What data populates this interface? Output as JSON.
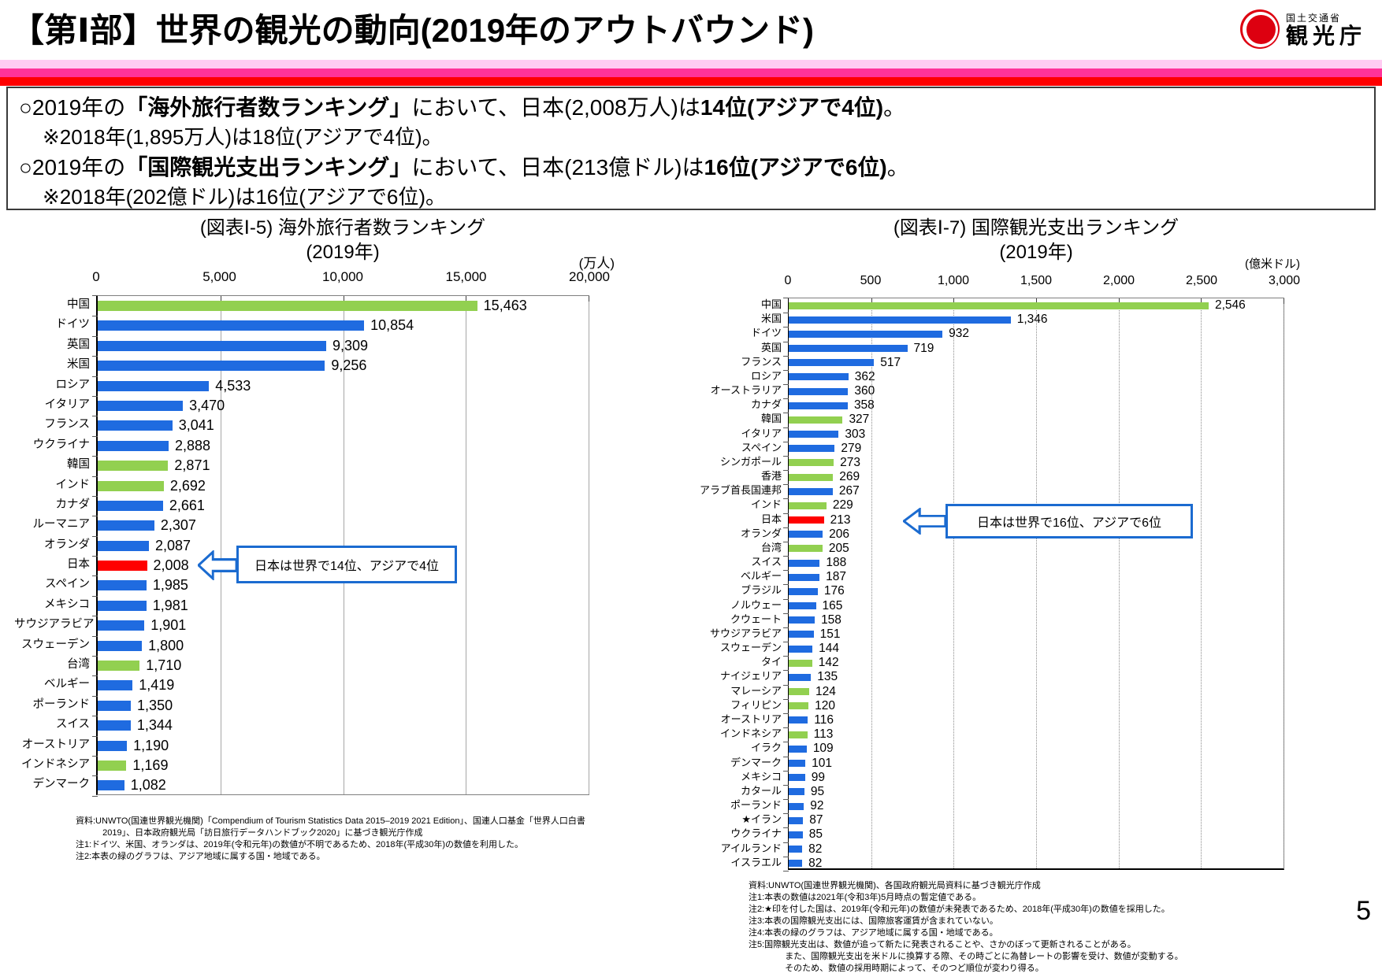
{
  "header": {
    "title": "【第Ⅰ部】世界の観光の動向(2019年のアウトバウンド)",
    "logo_ministry": "国土交通省",
    "logo_agency": "観光庁"
  },
  "page_number": "5",
  "colors": {
    "blue": "#1f6be0",
    "green": "#92d050",
    "red": "#ff0000",
    "stripe_pink": "#ffccf2",
    "stripe_magenta": "#ff3399",
    "stripe_red": "#ff0000",
    "callout_blue": "#1b6bd0",
    "logo_red": "#dd0010"
  },
  "summary": {
    "lines": [
      {
        "indent": false,
        "small": false,
        "segments": [
          {
            "t": "○2019年の",
            "b": false
          },
          {
            "t": "「海外旅行者数ランキング」",
            "b": true
          },
          {
            "t": "において、日本(2,008万人)は",
            "b": false
          },
          {
            "t": "14位(アジアで4位)",
            "b": true
          },
          {
            "t": "。",
            "b": false
          }
        ]
      },
      {
        "indent": true,
        "small": true,
        "segments": [
          {
            "t": "※2018年(1,895万人)は18位(アジアで4位)。",
            "b": false
          }
        ]
      },
      {
        "indent": false,
        "small": false,
        "segments": [
          {
            "t": "○2019年の",
            "b": false
          },
          {
            "t": "「国際観光支出ランキング」",
            "b": true
          },
          {
            "t": "において、日本(213億ドル)は",
            "b": false
          },
          {
            "t": "16位(アジアで6位)",
            "b": true
          },
          {
            "t": "。",
            "b": false
          }
        ]
      },
      {
        "indent": true,
        "small": true,
        "segments": [
          {
            "t": "※2018年(202億ドル)は16位(アジアで6位)。",
            "b": false
          }
        ]
      }
    ]
  },
  "chart_data": [
    {
      "type": "bar",
      "orientation": "horizontal",
      "title_line1": "(図表Ⅰ-5) 海外旅行者数ランキング",
      "title_line2": "(2019年)",
      "unit": "(万人)",
      "legend_note": "緑=アジア地域、赤=日本",
      "axis": {
        "min": 0,
        "max": 20000,
        "ticks": [
          "0",
          "5,000",
          "10,000",
          "15,000",
          "20,000"
        ],
        "gridline_style": "solid"
      },
      "bars": [
        {
          "label": "中国",
          "value": 15463,
          "display": "15,463",
          "color": "green"
        },
        {
          "label": "ドイツ",
          "value": 10854,
          "display": "10,854",
          "color": "blue"
        },
        {
          "label": "英国",
          "value": 9309,
          "display": "9,309",
          "color": "blue"
        },
        {
          "label": "米国",
          "value": 9256,
          "display": "9,256",
          "color": "blue"
        },
        {
          "label": "ロシア",
          "value": 4533,
          "display": "4,533",
          "color": "blue"
        },
        {
          "label": "イタリア",
          "value": 3470,
          "display": "3,470",
          "color": "blue"
        },
        {
          "label": "フランス",
          "value": 3041,
          "display": "3,041",
          "color": "blue"
        },
        {
          "label": "ウクライナ",
          "value": 2888,
          "display": "2,888",
          "color": "blue"
        },
        {
          "label": "韓国",
          "value": 2871,
          "display": "2,871",
          "color": "green"
        },
        {
          "label": "インド",
          "value": 2692,
          "display": "2,692",
          "color": "green"
        },
        {
          "label": "カナダ",
          "value": 2661,
          "display": "2,661",
          "color": "blue"
        },
        {
          "label": "ルーマニア",
          "value": 2307,
          "display": "2,307",
          "color": "blue"
        },
        {
          "label": "オランダ",
          "value": 2087,
          "display": "2,087",
          "color": "blue"
        },
        {
          "label": "日本",
          "value": 2008,
          "display": "2,008",
          "color": "red"
        },
        {
          "label": "スペイン",
          "value": 1985,
          "display": "1,985",
          "color": "blue"
        },
        {
          "label": "メキシコ",
          "value": 1981,
          "display": "1,981",
          "color": "blue"
        },
        {
          "label": "サウジアラビア",
          "value": 1901,
          "display": "1,901",
          "color": "blue"
        },
        {
          "label": "スウェーデン",
          "value": 1800,
          "display": "1,800",
          "color": "blue"
        },
        {
          "label": "台湾",
          "value": 1710,
          "display": "1,710",
          "color": "green"
        },
        {
          "label": "ベルギー",
          "value": 1419,
          "display": "1,419",
          "color": "blue"
        },
        {
          "label": "ポーランド",
          "value": 1350,
          "display": "1,350",
          "color": "blue"
        },
        {
          "label": "スイス",
          "value": 1344,
          "display": "1,344",
          "color": "blue"
        },
        {
          "label": "オーストリア",
          "value": 1190,
          "display": "1,190",
          "color": "blue"
        },
        {
          "label": "インドネシア",
          "value": 1169,
          "display": "1,169",
          "color": "green"
        },
        {
          "label": "デンマーク",
          "value": 1082,
          "display": "1,082",
          "color": "blue"
        }
      ],
      "callout": {
        "text": "日本は世界で14位、アジアで4位",
        "target": "日本"
      },
      "notes": [
        {
          "text": "資料:UNWTO(国連世界観光機関)「Compendium of Tourism Statistics Data 2015–2019 2021 Edition」、国連人口基金「世界人口白書2019」、日本政府観光局「訪日旅行データハンドブック2020」に基づき観光庁作成",
          "indent": false
        },
        {
          "text": "注1:ドイツ、米国、オランダは、2019年(令和元年)の数値が不明であるため、2018年(平成30年)の数値を利用した。",
          "indent": false
        },
        {
          "text": "注2:本表の緑のグラフは、アジア地域に属する国・地域である。",
          "indent": false
        }
      ]
    },
    {
      "type": "bar",
      "orientation": "horizontal",
      "title_line1": "(図表Ⅰ-7) 国際観光支出ランキング",
      "title_line2": "(2019年)",
      "unit": "(億米ドル)",
      "legend_note": "緑=アジア地域、赤=日本",
      "axis": {
        "min": 0,
        "max": 3000,
        "ticks": [
          "0",
          "500",
          "1,000",
          "1,500",
          "2,000",
          "2,500",
          "3,000"
        ],
        "gridline_style": "dotted"
      },
      "bars": [
        {
          "label": "中国",
          "value": 2546,
          "display": "2,546",
          "color": "green"
        },
        {
          "label": "米国",
          "value": 1346,
          "display": "1,346",
          "color": "blue"
        },
        {
          "label": "ドイツ",
          "value": 932,
          "display": "932",
          "color": "blue"
        },
        {
          "label": "英国",
          "value": 719,
          "display": "719",
          "color": "blue"
        },
        {
          "label": "フランス",
          "value": 517,
          "display": "517",
          "color": "blue"
        },
        {
          "label": "ロシア",
          "value": 362,
          "display": "362",
          "color": "blue"
        },
        {
          "label": "オーストラリア",
          "value": 360,
          "display": "360",
          "color": "blue"
        },
        {
          "label": "カナダ",
          "value": 358,
          "display": "358",
          "color": "blue"
        },
        {
          "label": "韓国",
          "value": 327,
          "display": "327",
          "color": "green"
        },
        {
          "label": "イタリア",
          "value": 303,
          "display": "303",
          "color": "blue"
        },
        {
          "label": "スペイン",
          "value": 279,
          "display": "279",
          "color": "blue"
        },
        {
          "label": "シンガポール",
          "value": 273,
          "display": "273",
          "color": "green"
        },
        {
          "label": "香港",
          "value": 269,
          "display": "269",
          "color": "green"
        },
        {
          "label": "アラブ首長国連邦",
          "value": 267,
          "display": "267",
          "color": "blue"
        },
        {
          "label": "インド",
          "value": 229,
          "display": "229",
          "color": "green"
        },
        {
          "label": "日本",
          "value": 213,
          "display": "213",
          "color": "red"
        },
        {
          "label": "オランダ",
          "value": 206,
          "display": "206",
          "color": "blue"
        },
        {
          "label": "台湾",
          "value": 205,
          "display": "205",
          "color": "green"
        },
        {
          "label": "スイス",
          "value": 188,
          "display": "188",
          "color": "blue"
        },
        {
          "label": "ベルギー",
          "value": 187,
          "display": "187",
          "color": "blue"
        },
        {
          "label": "ブラジル",
          "value": 176,
          "display": "176",
          "color": "blue"
        },
        {
          "label": "ノルウェー",
          "value": 165,
          "display": "165",
          "color": "blue"
        },
        {
          "label": "クウェート",
          "value": 158,
          "display": "158",
          "color": "blue"
        },
        {
          "label": "サウジアラビア",
          "value": 151,
          "display": "151",
          "color": "blue"
        },
        {
          "label": "スウェーデン",
          "value": 144,
          "display": "144",
          "color": "blue"
        },
        {
          "label": "タイ",
          "value": 142,
          "display": "142",
          "color": "green"
        },
        {
          "label": "ナイジェリア",
          "value": 135,
          "display": "135",
          "color": "blue"
        },
        {
          "label": "マレーシア",
          "value": 124,
          "display": "124",
          "color": "green"
        },
        {
          "label": "フィリピン",
          "value": 120,
          "display": "120",
          "color": "green"
        },
        {
          "label": "オーストリア",
          "value": 116,
          "display": "116",
          "color": "blue"
        },
        {
          "label": "インドネシア",
          "value": 113,
          "display": "113",
          "color": "green"
        },
        {
          "label": "イラク",
          "value": 109,
          "display": "109",
          "color": "blue"
        },
        {
          "label": "デンマーク",
          "value": 101,
          "display": "101",
          "color": "blue"
        },
        {
          "label": "メキシコ",
          "value": 99,
          "display": "99",
          "color": "blue"
        },
        {
          "label": "カタール",
          "value": 95,
          "display": "95",
          "color": "blue"
        },
        {
          "label": "ポーランド",
          "value": 92,
          "display": "92",
          "color": "blue"
        },
        {
          "label": "★イラン",
          "value": 87,
          "display": "87",
          "color": "blue"
        },
        {
          "label": "ウクライナ",
          "value": 85,
          "display": "85",
          "color": "blue"
        },
        {
          "label": "アイルランド",
          "value": 82,
          "display": "82",
          "color": "blue"
        },
        {
          "label": "イスラエル",
          "value": 82,
          "display": "82",
          "color": "blue"
        }
      ],
      "callout": {
        "text": "日本は世界で16位、アジアで6位",
        "target": "日本"
      },
      "notes": [
        {
          "text": "資料:UNWTO(国連世界観光機関)、各国政府観光局資料に基づき観光庁作成",
          "indent": false
        },
        {
          "text": "注1:本表の数値は2021年(令和3年)5月時点の暫定値である。",
          "indent": false
        },
        {
          "text": "注2:★印を付した国は、2019年(令和元年)の数値が未発表であるため、2018年(平成30年)の数値を採用した。",
          "indent": false
        },
        {
          "text": "注3:本表の国際観光支出には、国際旅客運賃が含まれていない。",
          "indent": false
        },
        {
          "text": "注4:本表の緑のグラフは、アジア地域に属する国・地域である。",
          "indent": false
        },
        {
          "text": "注5:国際観光支出は、数値が追って新たに発表されることや、さかのぼって更新されることがある。",
          "indent": false
        },
        {
          "text": "また、国際観光支出を米ドルに換算する際、その時ごとに為替レートの影響を受け、数値が変動する。",
          "indent": true
        },
        {
          "text": "そのため、数値の採用時期によって、そのつど順位が変わり得る。",
          "indent": true
        }
      ]
    }
  ]
}
